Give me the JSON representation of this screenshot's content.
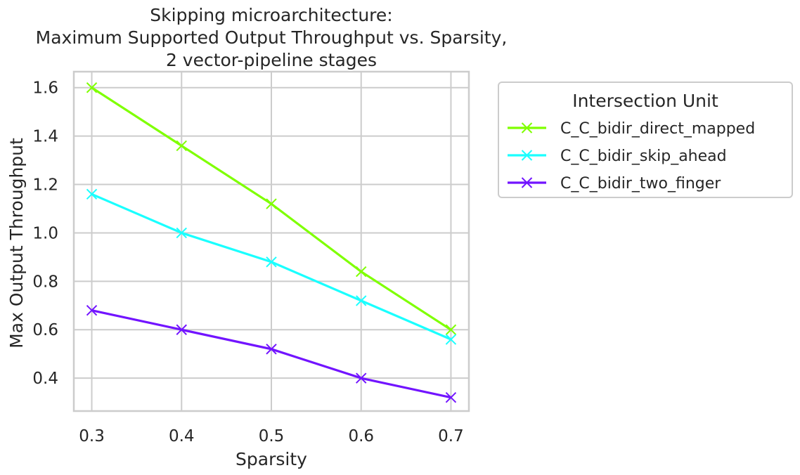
{
  "chart_data": {
    "type": "line",
    "title": [
      "Skipping microarchitecture:",
      "Maximum Supported Output Throughput vs. Sparsity,",
      "2 vector-pipeline stages"
    ],
    "xlabel": "Sparsity",
    "ylabel": "Max Output Throughput",
    "x": [
      0.3,
      0.4,
      0.5,
      0.6,
      0.7
    ],
    "xticks": [
      "0.3",
      "0.4",
      "0.5",
      "0.6",
      "0.7"
    ],
    "yticks": [
      "0.4",
      "0.6",
      "0.8",
      "1.0",
      "1.2",
      "1.4",
      "1.6"
    ],
    "xlim": [
      0.28,
      0.72
    ],
    "ylim": [
      0.264,
      1.666
    ],
    "grid": true,
    "marker": "x",
    "legend": {
      "title": "Intersection Unit",
      "placement": "outside-upper-right"
    },
    "series": [
      {
        "name": "C_C_bidir_direct_mapped",
        "color": "#7fff00",
        "values": [
          1.6,
          1.36,
          1.12,
          0.84,
          0.6
        ]
      },
      {
        "name": "C_C_bidir_skip_ahead",
        "color": "#1affff",
        "values": [
          1.16,
          1.0,
          0.88,
          0.72,
          0.56
        ]
      },
      {
        "name": "C_C_bidir_two_finger",
        "color": "#7214ff",
        "values": [
          0.68,
          0.6,
          0.52,
          0.4,
          0.32
        ]
      }
    ]
  }
}
